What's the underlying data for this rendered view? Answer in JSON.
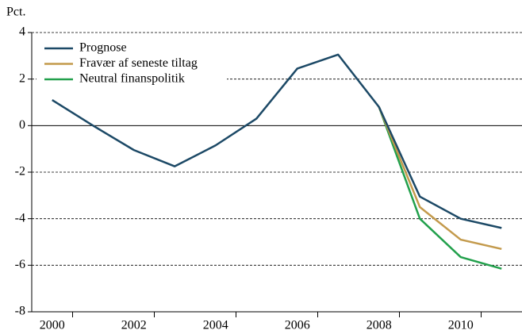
{
  "chart_data": {
    "type": "line",
    "y_label": "Pct.",
    "categories": [
      "2000",
      null,
      "2002",
      null,
      "2004",
      null,
      "2006",
      null,
      "2008",
      null,
      "2010",
      null
    ],
    "series": [
      {
        "name": "Prognose",
        "color": "#1c4966",
        "values": [
          1.1,
          0.0,
          -1.05,
          -1.75,
          -0.85,
          0.3,
          2.45,
          3.05,
          0.8,
          -3.05,
          -4.0,
          -4.4
        ]
      },
      {
        "name": "Fravær af seneste tiltag",
        "color": "#c39a4c",
        "values": [
          null,
          null,
          null,
          null,
          null,
          null,
          null,
          null,
          0.8,
          -3.5,
          -4.9,
          -5.3
        ]
      },
      {
        "name": "Neutral finanspolitik",
        "color": "#22a04c",
        "values": [
          null,
          null,
          null,
          null,
          null,
          null,
          null,
          null,
          0.8,
          -4.0,
          -5.65,
          -6.15
        ]
      }
    ],
    "ylim": [
      -8,
      4
    ],
    "yticks": [
      -8,
      -6,
      -4,
      -2,
      0,
      2,
      4
    ],
    "grid": true,
    "legend": "top-left"
  }
}
